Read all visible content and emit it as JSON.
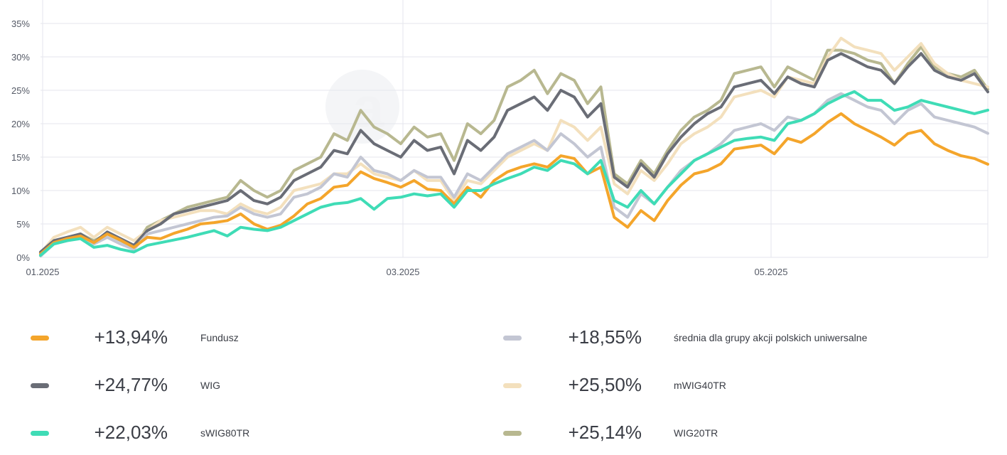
{
  "chart_data": {
    "type": "line",
    "x_tick_labels": [
      "01.2025",
      "03.2025",
      "05.2025"
    ],
    "y_tick_labels": [
      "0%",
      "5%",
      "10%",
      "15%",
      "20%",
      "25%",
      "30%",
      "35%"
    ],
    "ylim": [
      0,
      36
    ],
    "y_unit": "%",
    "grid": true,
    "legend_placement": "bottom",
    "series": [
      {
        "name": "Fundusz",
        "color": "#f4a52b",
        "final": "+13,94%",
        "values": [
          0.5,
          2.2,
          2.8,
          3.2,
          2.2,
          3.5,
          2.6,
          1.5,
          3.0,
          2.8,
          3.6,
          4.2,
          5.0,
          5.2,
          5.5,
          6.5,
          5.0,
          4.2,
          4.8,
          6.2,
          8.0,
          8.8,
          10.5,
          10.8,
          12.8,
          11.8,
          11.2,
          10.5,
          11.5,
          10.2,
          10.0,
          8.0,
          10.5,
          9.0,
          11.5,
          12.8,
          13.5,
          14.0,
          13.5,
          15.2,
          14.8,
          12.5,
          13.5,
          6.0,
          4.5,
          7.0,
          5.5,
          8.5,
          10.8,
          12.5,
          13.0,
          14.0,
          16.2,
          16.5,
          16.8,
          15.5,
          17.8,
          17.2,
          18.5,
          20.2,
          21.5,
          20.0,
          19.0,
          18.0,
          16.8,
          18.5,
          19.0,
          17.0,
          16.0,
          15.2,
          14.8,
          13.94
        ]
      },
      {
        "name": "WIG",
        "color": "#6a6d76",
        "final": "+24,77%",
        "values": [
          0.8,
          2.5,
          3.0,
          3.5,
          2.2,
          3.8,
          2.8,
          1.8,
          4.0,
          5.0,
          6.5,
          7.0,
          7.5,
          8.0,
          8.5,
          10.0,
          8.5,
          8.0,
          9.0,
          11.5,
          12.5,
          13.5,
          16.0,
          15.5,
          19.0,
          17.0,
          16.0,
          15.0,
          17.5,
          16.0,
          16.5,
          12.5,
          17.5,
          16.0,
          18.0,
          22.0,
          23.0,
          24.0,
          22.0,
          25.0,
          24.0,
          21.0,
          23.0,
          12.0,
          10.5,
          14.0,
          12.0,
          15.5,
          18.0,
          20.0,
          21.5,
          22.5,
          25.5,
          26.0,
          26.5,
          24.5,
          27.0,
          26.0,
          25.5,
          29.5,
          30.5,
          29.5,
          28.5,
          28.0,
          26.0,
          28.5,
          30.5,
          28.0,
          27.0,
          26.5,
          27.5,
          24.77
        ]
      },
      {
        "name": "sWIG80TR",
        "color": "#3fdcb6",
        "final": "+22,03%",
        "values": [
          0.3,
          2.0,
          2.5,
          2.8,
          1.5,
          1.8,
          1.2,
          0.8,
          1.8,
          2.2,
          2.6,
          3.0,
          3.5,
          4.0,
          3.2,
          4.5,
          4.2,
          4.0,
          4.5,
          5.5,
          6.5,
          7.5,
          8.0,
          8.2,
          8.8,
          7.2,
          8.8,
          9.0,
          9.5,
          9.2,
          9.5,
          7.5,
          10.0,
          10.0,
          11.0,
          11.8,
          12.5,
          13.5,
          13.0,
          14.5,
          14.0,
          12.5,
          14.5,
          8.5,
          7.5,
          10.0,
          8.0,
          10.5,
          12.5,
          14.5,
          15.5,
          16.5,
          17.5,
          17.8,
          18.0,
          17.5,
          20.0,
          20.5,
          21.5,
          23.0,
          24.0,
          24.8,
          23.5,
          23.5,
          22.0,
          22.5,
          23.5,
          23.0,
          22.5,
          22.0,
          21.5,
          22.03
        ]
      },
      {
        "name": "średnia dla grupy akcji polskich uniwersalne",
        "color": "#c3c6d3",
        "final": "+18,55%",
        "values": [
          0.2,
          2.0,
          2.5,
          3.0,
          2.0,
          3.0,
          2.0,
          1.2,
          3.5,
          4.0,
          4.5,
          5.0,
          5.5,
          6.0,
          6.2,
          7.5,
          6.5,
          6.0,
          6.5,
          9.0,
          9.5,
          10.5,
          12.5,
          12.0,
          15.0,
          13.0,
          12.5,
          11.5,
          13.0,
          12.0,
          12.0,
          9.0,
          12.5,
          11.5,
          13.5,
          15.5,
          16.5,
          17.5,
          16.0,
          18.5,
          17.0,
          15.0,
          16.5,
          7.5,
          6.0,
          9.5,
          8.0,
          10.5,
          13.0,
          14.5,
          15.5,
          17.0,
          19.0,
          19.5,
          20.0,
          19.0,
          21.0,
          20.5,
          21.5,
          23.5,
          24.5,
          23.5,
          22.5,
          22.0,
          20.0,
          22.0,
          23.0,
          21.0,
          20.5,
          20.0,
          19.5,
          18.55
        ]
      },
      {
        "name": "mWIG40TR",
        "color": "#f3e0bd",
        "final": "+25,50%",
        "values": [
          0.6,
          3.0,
          3.8,
          4.5,
          3.0,
          4.5,
          3.5,
          2.5,
          4.0,
          5.5,
          6.0,
          6.5,
          7.0,
          7.0,
          6.5,
          8.0,
          7.0,
          6.5,
          7.5,
          10.0,
          10.5,
          11.0,
          12.5,
          12.5,
          14.0,
          12.5,
          12.0,
          11.5,
          13.0,
          11.5,
          11.5,
          8.5,
          11.5,
          11.0,
          13.0,
          15.0,
          16.0,
          17.0,
          16.0,
          20.5,
          19.5,
          17.5,
          19.5,
          11.0,
          9.5,
          13.0,
          11.5,
          14.0,
          17.0,
          18.5,
          19.5,
          21.0,
          24.0,
          24.5,
          25.0,
          24.0,
          27.0,
          26.5,
          26.0,
          30.0,
          32.8,
          31.5,
          31.0,
          30.5,
          28.0,
          30.0,
          32.0,
          29.0,
          27.5,
          26.5,
          26.0,
          25.5
        ]
      },
      {
        "name": "WIG20TR",
        "color": "#b8b890",
        "final": "+25,14%",
        "values": [
          0.7,
          2.5,
          3.0,
          3.5,
          2.5,
          3.5,
          2.5,
          1.5,
          4.5,
          5.5,
          6.5,
          7.5,
          8.0,
          8.5,
          9.0,
          11.5,
          10.0,
          9.0,
          10.0,
          13.0,
          14.0,
          15.0,
          18.5,
          17.5,
          22.0,
          19.5,
          18.5,
          17.0,
          19.5,
          18.0,
          18.5,
          14.5,
          20.0,
          18.5,
          20.5,
          25.5,
          26.5,
          28.0,
          24.5,
          27.5,
          26.5,
          23.0,
          25.5,
          12.5,
          11.0,
          14.5,
          12.5,
          16.0,
          19.0,
          21.0,
          22.0,
          23.5,
          27.5,
          28.0,
          28.5,
          25.5,
          28.5,
          27.5,
          26.5,
          31.0,
          31.0,
          30.5,
          29.5,
          29.0,
          26.0,
          29.0,
          31.5,
          28.5,
          27.5,
          27.0,
          28.0,
          25.14
        ]
      }
    ]
  }
}
